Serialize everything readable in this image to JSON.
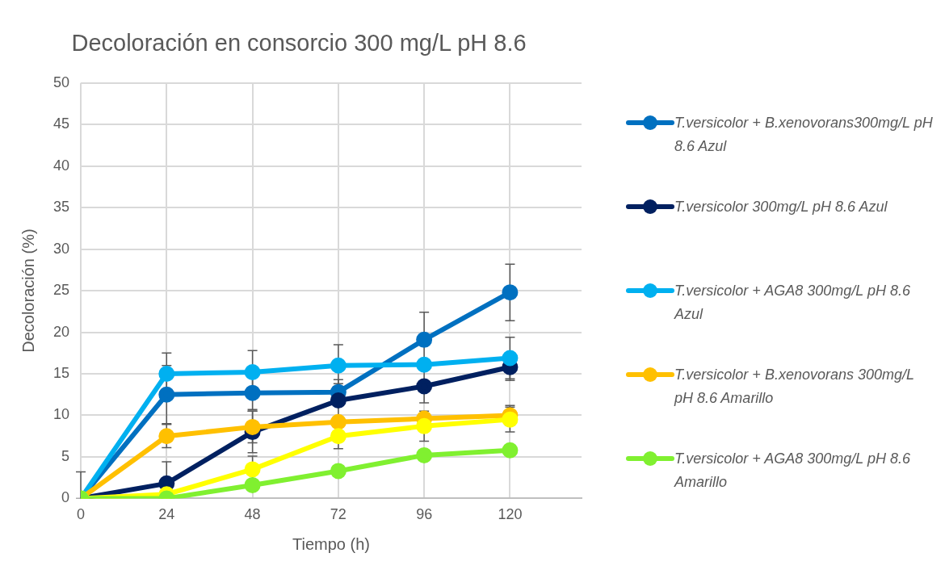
{
  "chart_data": {
    "type": "line",
    "title": "Decoloración en consorcio 300 mg/L pH 8.6",
    "xlabel": "Tiempo (h)",
    "ylabel": "Decoloración (%)",
    "x": [
      0,
      24,
      48,
      72,
      96,
      120
    ],
    "xlim": [
      0,
      140
    ],
    "xticks": [
      0,
      24,
      48,
      72,
      96,
      120
    ],
    "ylim": [
      0,
      50
    ],
    "yticks": [
      0,
      5,
      10,
      15,
      20,
      25,
      30,
      35,
      40,
      45,
      50
    ],
    "grid": true,
    "legend": "right",
    "marker": "circle",
    "line_style": "solid",
    "series": [
      {
        "name": "T.versicolor + B.xenovorans300mg/L pH 8.6 Azul",
        "color": "#0070c0",
        "values": [
          0,
          12.5,
          12.7,
          12.8,
          19.1,
          24.8
        ],
        "errors": [
          [
            0,
            3.2
          ],
          3.5,
          2,
          1.5,
          3.3,
          3.4
        ]
      },
      {
        "name": "T.versicolor 300mg/L pH 8.6 Azul",
        "color": "#002060",
        "values": [
          0,
          1.8,
          8.0,
          11.8,
          13.5,
          15.8
        ],
        "errors": [
          null,
          2.6,
          2.5,
          2,
          2,
          1.6
        ]
      },
      {
        "name": "T.versicolor + AGA8 300mg/L pH 8.6 Azul",
        "color": "#00b0f0",
        "values": [
          0,
          15.0,
          15.2,
          16.0,
          16.1,
          16.9
        ],
        "errors": [
          null,
          2.5,
          2.6,
          2.5,
          null,
          2.5
        ]
      },
      {
        "name": "T.versicolor + B.xenovorans 300mg/L pH 8.6 Amarillo",
        "color": "#ffc000",
        "values": [
          0,
          7.5,
          8.6,
          9.2,
          9.6,
          10.0
        ],
        "errors": [
          null,
          1.4,
          1.9,
          null,
          null,
          1.2
        ]
      },
      {
        "color": "#ffff00",
        "values": [
          0,
          0.5,
          3.5,
          7.5,
          8.7,
          9.5
        ],
        "errors": [
          null,
          null,
          1.6,
          1.5,
          1.8,
          1.5
        ]
      },
      {
        "name": "T.versicolor + AGA8 300mg/L pH 8.6 Amarillo",
        "color": "#80f030",
        "values": [
          0,
          0,
          1.6,
          3.3,
          5.2,
          5.8
        ]
      }
    ]
  }
}
